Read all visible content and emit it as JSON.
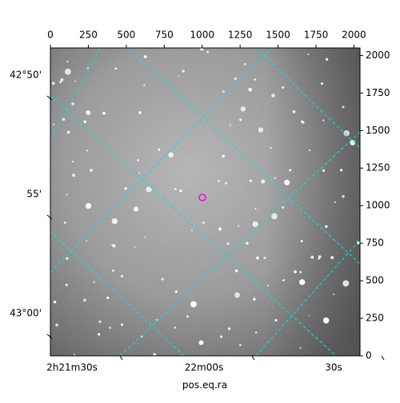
{
  "chart_data": {
    "type": "image",
    "xlabel": "pos.eq.ra",
    "xlim": [
      0,
      2040
    ],
    "xticks": [
      0,
      250,
      500,
      750,
      1000,
      1250,
      1500,
      1750,
      2000
    ],
    "ylim": [
      0,
      2050
    ],
    "yticks": [
      0,
      250,
      500,
      750,
      1000,
      1250,
      1500,
      1750,
      2000
    ],
    "dec_labels": [
      "42°50'",
      "55'",
      "43°00'"
    ],
    "ra_labels": [
      "2h21m30s",
      "22m00s",
      "30s"
    ],
    "grid_color": "#00e5e5"
  }
}
